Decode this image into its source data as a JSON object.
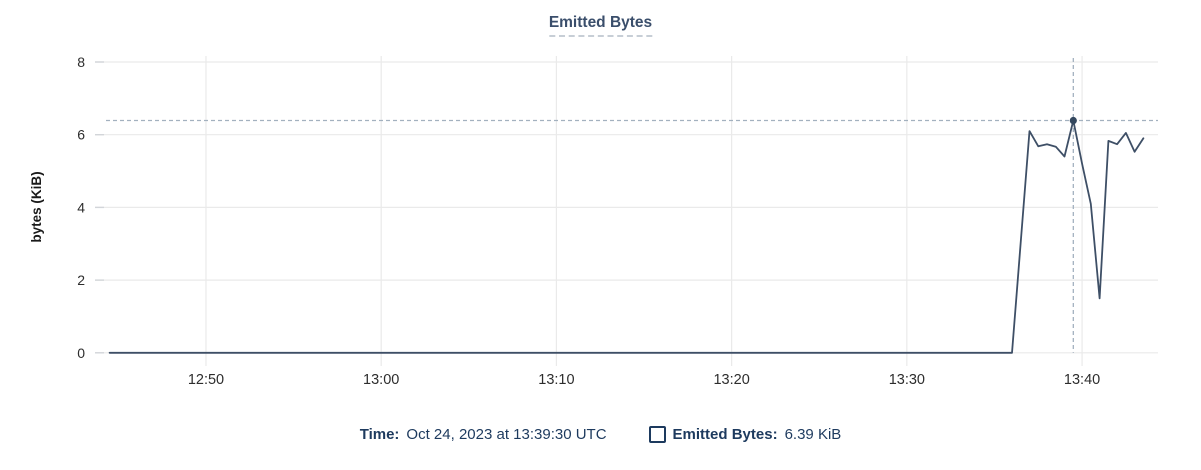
{
  "title": "Emitted Bytes",
  "y_axis_label": "bytes (KiB)",
  "footer": {
    "time_label": "Time:",
    "time_value": "Oct 24, 2023 at 13:39:30 UTC",
    "legend_checkbox_state": "unchecked",
    "series_label": "Emitted Bytes:",
    "series_value": "6.39 KiB"
  },
  "colors": {
    "line": "#3e4f66",
    "marker": "#34485f",
    "navy_text": "#1d3a5e",
    "title_text": "#3a4e6b",
    "grid": "#eaeaea",
    "tick_stub": "#d2d5d9",
    "crosshair": "#a3b1bf",
    "axis_text": "#2d2d2d",
    "ylabel_text": "#1a1a1a"
  },
  "chart_data": {
    "type": "line",
    "title": "Emitted Bytes",
    "xlabel": "",
    "ylabel": "bytes (KiB)",
    "ylim": [
      0,
      8
    ],
    "y_ticks": [
      0,
      2,
      4,
      6,
      8
    ],
    "x_domain": [
      "12:43:40",
      "13:44:20"
    ],
    "x_ticks": [
      "12:50",
      "13:00",
      "13:10",
      "13:20",
      "13:30",
      "13:40"
    ],
    "grid": true,
    "legend_position": "bottom",
    "series": [
      {
        "name": "Emitted Bytes",
        "unit": "KiB",
        "points": [
          [
            "12:44:30",
            0
          ],
          [
            "13:36:00",
            0
          ],
          [
            "13:37:00",
            6.1
          ],
          [
            "13:37:30",
            5.68
          ],
          [
            "13:38:00",
            5.74
          ],
          [
            "13:38:30",
            5.67
          ],
          [
            "13:39:00",
            5.4
          ],
          [
            "13:39:30",
            6.39
          ],
          [
            "13:40:00",
            5.2
          ],
          [
            "13:40:30",
            4.1
          ],
          [
            "13:41:00",
            1.5
          ],
          [
            "13:41:30",
            5.83
          ],
          [
            "13:42:00",
            5.74
          ],
          [
            "13:42:30",
            6.05
          ],
          [
            "13:43:00",
            5.53
          ],
          [
            "13:43:30",
            5.9
          ]
        ]
      }
    ],
    "highlight": {
      "time": "13:39:30",
      "value": 6.39,
      "value_label": "6.39 KiB",
      "crosshair": true,
      "threshold_line": true
    }
  }
}
